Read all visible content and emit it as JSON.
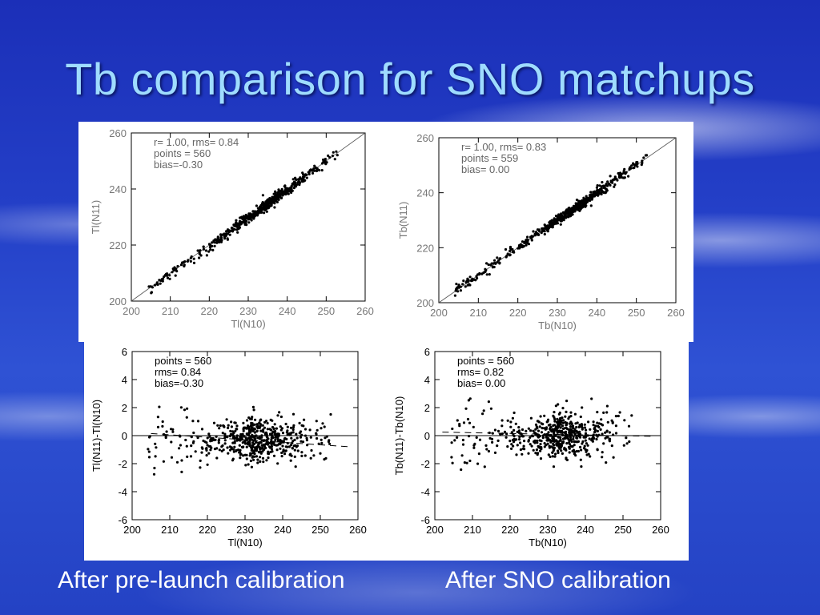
{
  "slide": {
    "title": "Tb comparison for SNO matchups",
    "caption_left": "After pre-launch calibration",
    "caption_right": "After SNO calibration"
  },
  "chart_data": [
    {
      "type": "scatter",
      "xlabel": "Tl(N10)",
      "ylabel": "Tl(N11)",
      "xlim": [
        200,
        260
      ],
      "ylim": [
        200,
        260
      ],
      "xticks": [
        200,
        210,
        220,
        230,
        240,
        250,
        260
      ],
      "yticks": [
        200,
        220,
        240,
        260
      ],
      "annotations": [
        "r= 1.00,   rms= 0.84",
        "points = 560",
        "bias=-0.30"
      ],
      "one_to_one_line": true,
      "bias": -0.3,
      "rms": 0.84,
      "points": 560
    },
    {
      "type": "scatter",
      "xlabel": "Tb(N10)",
      "ylabel": "Tb(N11)",
      "xlim": [
        200,
        260
      ],
      "ylim": [
        200,
        260
      ],
      "xticks": [
        200,
        210,
        220,
        230,
        240,
        250,
        260
      ],
      "yticks": [
        200,
        220,
        240,
        260
      ],
      "annotations": [
        "r= 1.00,   rms= 0.83",
        "points = 559",
        "bias= 0.00"
      ],
      "one_to_one_line": true,
      "bias": 0.0,
      "rms": 0.83,
      "points": 559
    },
    {
      "type": "scatter",
      "xlabel": "Tl(N10)",
      "ylabel": "Tl(N11)-Tl(N10)",
      "xlim": [
        200,
        260
      ],
      "ylim": [
        -6,
        6
      ],
      "xticks": [
        200,
        210,
        220,
        230,
        240,
        250,
        260
      ],
      "yticks": [
        -6,
        -4,
        -2,
        0,
        2,
        4,
        6
      ],
      "annotations": [
        "points = 560",
        "rms= 0.84",
        "bias=-0.30"
      ],
      "zero_line": true,
      "fit_line_dashed": [
        [
          205,
          0.15
        ],
        [
          258,
          -0.8
        ]
      ],
      "bias": -0.3,
      "rms": 0.84,
      "points": 560
    },
    {
      "type": "scatter",
      "xlabel": "Tb(N10)",
      "ylabel": "Tb(N11)-Tb(N10)",
      "xlim": [
        200,
        260
      ],
      "ylim": [
        -6,
        6
      ],
      "xticks": [
        200,
        210,
        220,
        230,
        240,
        250,
        260
      ],
      "yticks": [
        -6,
        -4,
        -2,
        0,
        2,
        4,
        6
      ],
      "annotations": [
        "points = 560",
        "rms= 0.82",
        "bias= 0.00"
      ],
      "zero_line": true,
      "fit_line_dashed": [
        [
          202,
          0.25
        ],
        [
          258,
          -0.05
        ]
      ],
      "bias": 0.0,
      "rms": 0.82,
      "points": 560
    }
  ]
}
